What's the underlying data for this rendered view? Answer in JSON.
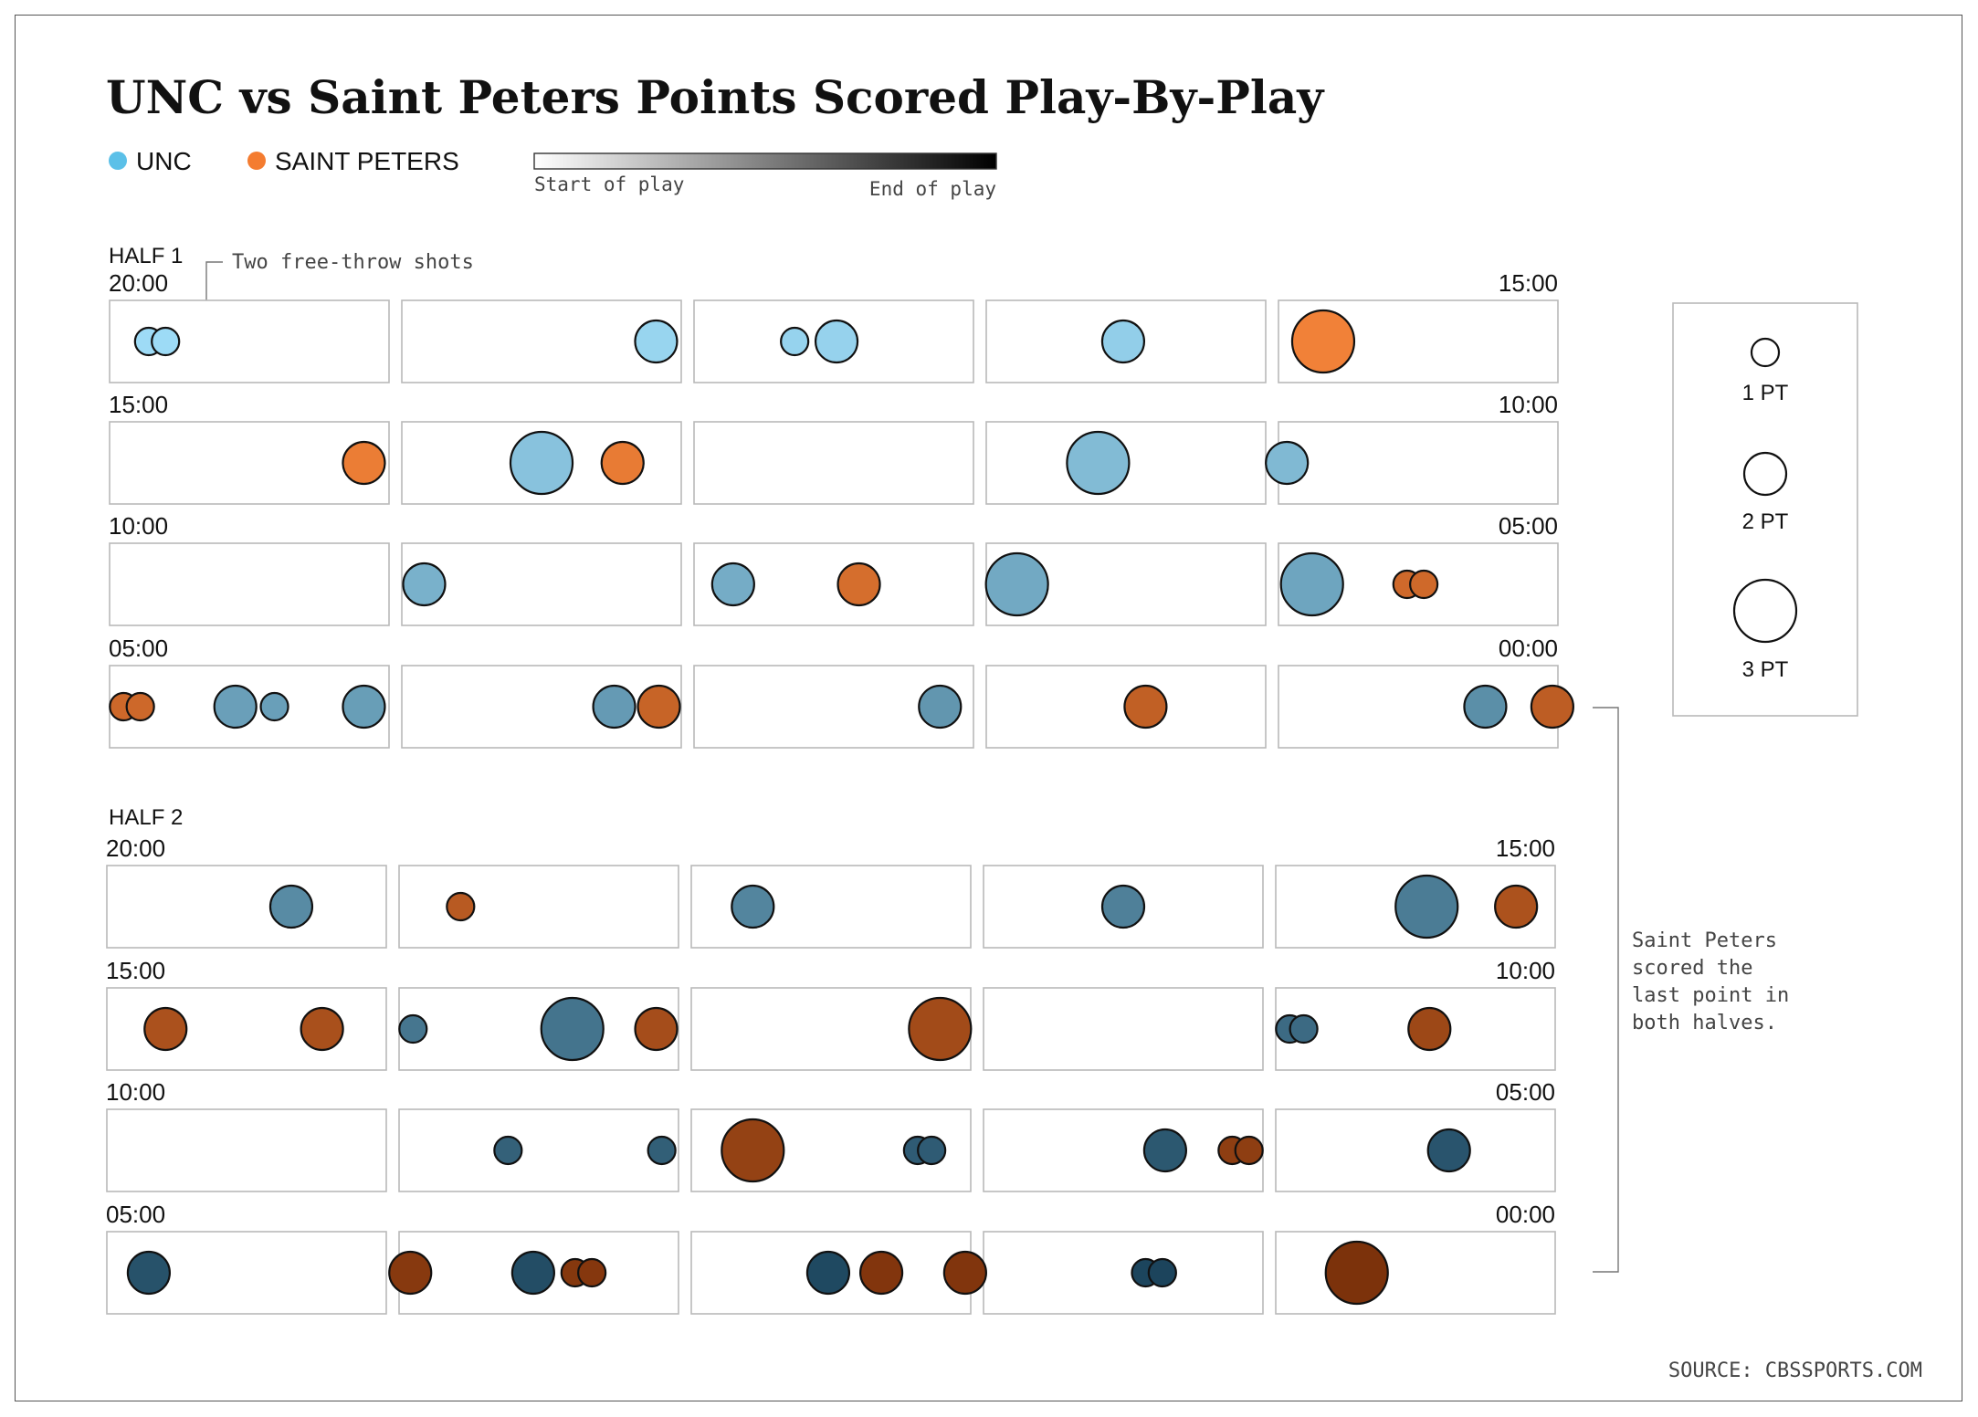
{
  "title": "UNC vs Saint Peters Points Scored Play-By-Play",
  "legend": {
    "teams": [
      {
        "name": "UNC",
        "color": "#5bc0e8"
      },
      {
        "name": "SAINT PETERS",
        "color": "#f47c30"
      }
    ],
    "gradient_start": "Start of play",
    "gradient_end": "End of play",
    "size_legend": [
      "1 PT",
      "2 PT",
      "3 PT"
    ]
  },
  "annotations": {
    "free_throw": "Two free-throw shots",
    "last_point": [
      "Saint Peters",
      "scored the",
      "last point in",
      "both halves."
    ]
  },
  "source": "SOURCE: CBSSPORTS.COM",
  "colors": {
    "unc_start": "#9edcf7",
    "unc_end": "#173f57",
    "sp_start": "#ff8a3d",
    "sp_end": "#7a300a"
  },
  "chart_data": {
    "type": "scatter",
    "encoding": "Each circle is one scoring play. Horizontal position = game clock within a 1-minute panel (5 panels per 5-minute row). Circle size = points (1, 2 or 3). Color = team; shade from light to dark = start to end of play.",
    "halves": [
      {
        "label": "HALF 1",
        "rows": [
          {
            "start_label": "20:00",
            "end_label": "15:00"
          },
          {
            "start_label": "15:00",
            "end_label": "10:00"
          },
          {
            "start_label": "10:00",
            "end_label": "05:00"
          },
          {
            "start_label": "05:00",
            "end_label": "00:00"
          }
        ],
        "plays": [
          {
            "row": 0,
            "panel": 0,
            "x": 0.14,
            "pts": 1,
            "team": "UNC"
          },
          {
            "row": 0,
            "panel": 0,
            "x": 0.2,
            "pts": 1,
            "team": "UNC"
          },
          {
            "row": 0,
            "panel": 1,
            "x": 0.91,
            "pts": 2,
            "team": "UNC"
          },
          {
            "row": 0,
            "panel": 2,
            "x": 0.36,
            "pts": 1,
            "team": "UNC"
          },
          {
            "row": 0,
            "panel": 2,
            "x": 0.51,
            "pts": 2,
            "team": "UNC"
          },
          {
            "row": 0,
            "panel": 3,
            "x": 0.49,
            "pts": 2,
            "team": "UNC"
          },
          {
            "row": 0,
            "panel": 4,
            "x": 0.16,
            "pts": 3,
            "team": "SP"
          },
          {
            "row": 1,
            "panel": 0,
            "x": 0.91,
            "pts": 2,
            "team": "SP"
          },
          {
            "row": 1,
            "panel": 1,
            "x": 0.5,
            "pts": 3,
            "team": "UNC"
          },
          {
            "row": 1,
            "panel": 1,
            "x": 0.79,
            "pts": 2,
            "team": "SP"
          },
          {
            "row": 1,
            "panel": 3,
            "x": 0.4,
            "pts": 3,
            "team": "UNC"
          },
          {
            "row": 1,
            "panel": 4,
            "x": 0.03,
            "pts": 2,
            "team": "UNC"
          },
          {
            "row": 2,
            "panel": 1,
            "x": 0.08,
            "pts": 2,
            "team": "UNC"
          },
          {
            "row": 2,
            "panel": 2,
            "x": 0.14,
            "pts": 2,
            "team": "UNC"
          },
          {
            "row": 2,
            "panel": 2,
            "x": 0.59,
            "pts": 2,
            "team": "SP"
          },
          {
            "row": 2,
            "panel": 3,
            "x": 0.11,
            "pts": 3,
            "team": "UNC"
          },
          {
            "row": 2,
            "panel": 4,
            "x": 0.12,
            "pts": 3,
            "team": "UNC"
          },
          {
            "row": 2,
            "panel": 4,
            "x": 0.46,
            "pts": 1,
            "team": "SP"
          },
          {
            "row": 2,
            "panel": 4,
            "x": 0.52,
            "pts": 1,
            "team": "SP"
          },
          {
            "row": 3,
            "panel": 0,
            "x": 0.05,
            "pts": 1,
            "team": "SP"
          },
          {
            "row": 3,
            "panel": 0,
            "x": 0.11,
            "pts": 1,
            "team": "SP"
          },
          {
            "row": 3,
            "panel": 0,
            "x": 0.45,
            "pts": 2,
            "team": "UNC"
          },
          {
            "row": 3,
            "panel": 0,
            "x": 0.59,
            "pts": 1,
            "team": "UNC"
          },
          {
            "row": 3,
            "panel": 0,
            "x": 0.91,
            "pts": 2,
            "team": "UNC"
          },
          {
            "row": 3,
            "panel": 1,
            "x": 0.76,
            "pts": 2,
            "team": "UNC"
          },
          {
            "row": 3,
            "panel": 1,
            "x": 0.92,
            "pts": 2,
            "team": "SP"
          },
          {
            "row": 3,
            "panel": 2,
            "x": 0.88,
            "pts": 2,
            "team": "UNC"
          },
          {
            "row": 3,
            "panel": 3,
            "x": 0.57,
            "pts": 2,
            "team": "SP"
          },
          {
            "row": 3,
            "panel": 4,
            "x": 0.74,
            "pts": 2,
            "team": "UNC"
          },
          {
            "row": 3,
            "panel": 4,
            "x": 0.98,
            "pts": 2,
            "team": "SP"
          }
        ]
      },
      {
        "label": "HALF 2",
        "rows": [
          {
            "start_label": "20:00",
            "end_label": "15:00"
          },
          {
            "start_label": "15:00",
            "end_label": "10:00"
          },
          {
            "start_label": "10:00",
            "end_label": "05:00"
          },
          {
            "start_label": "05:00",
            "end_label": "00:00"
          }
        ],
        "plays": [
          {
            "row": 0,
            "panel": 0,
            "x": 0.66,
            "pts": 2,
            "team": "UNC"
          },
          {
            "row": 0,
            "panel": 1,
            "x": 0.22,
            "pts": 1,
            "team": "SP"
          },
          {
            "row": 0,
            "panel": 2,
            "x": 0.22,
            "pts": 2,
            "team": "UNC"
          },
          {
            "row": 0,
            "panel": 3,
            "x": 0.5,
            "pts": 2,
            "team": "UNC"
          },
          {
            "row": 0,
            "panel": 4,
            "x": 0.54,
            "pts": 3,
            "team": "UNC"
          },
          {
            "row": 0,
            "panel": 4,
            "x": 0.86,
            "pts": 2,
            "team": "SP"
          },
          {
            "row": 1,
            "panel": 0,
            "x": 0.21,
            "pts": 2,
            "team": "SP"
          },
          {
            "row": 1,
            "panel": 0,
            "x": 0.77,
            "pts": 2,
            "team": "SP"
          },
          {
            "row": 1,
            "panel": 1,
            "x": 0.05,
            "pts": 1,
            "team": "UNC"
          },
          {
            "row": 1,
            "panel": 1,
            "x": 0.62,
            "pts": 3,
            "team": "UNC"
          },
          {
            "row": 1,
            "panel": 1,
            "x": 0.92,
            "pts": 2,
            "team": "SP"
          },
          {
            "row": 1,
            "panel": 2,
            "x": 0.89,
            "pts": 3,
            "team": "SP"
          },
          {
            "row": 1,
            "panel": 4,
            "x": 0.05,
            "pts": 1,
            "team": "UNC"
          },
          {
            "row": 1,
            "panel": 4,
            "x": 0.1,
            "pts": 1,
            "team": "UNC"
          },
          {
            "row": 1,
            "panel": 4,
            "x": 0.55,
            "pts": 2,
            "team": "SP"
          },
          {
            "row": 2,
            "panel": 1,
            "x": 0.39,
            "pts": 1,
            "team": "UNC"
          },
          {
            "row": 2,
            "panel": 1,
            "x": 0.94,
            "pts": 1,
            "team": "UNC"
          },
          {
            "row": 2,
            "panel": 2,
            "x": 0.22,
            "pts": 3,
            "team": "SP"
          },
          {
            "row": 2,
            "panel": 2,
            "x": 0.81,
            "pts": 1,
            "team": "UNC"
          },
          {
            "row": 2,
            "panel": 2,
            "x": 0.86,
            "pts": 1,
            "team": "UNC"
          },
          {
            "row": 2,
            "panel": 3,
            "x": 0.65,
            "pts": 2,
            "team": "UNC"
          },
          {
            "row": 2,
            "panel": 3,
            "x": 0.89,
            "pts": 1,
            "team": "SP"
          },
          {
            "row": 2,
            "panel": 3,
            "x": 0.95,
            "pts": 1,
            "team": "SP"
          },
          {
            "row": 2,
            "panel": 4,
            "x": 0.62,
            "pts": 2,
            "team": "UNC"
          },
          {
            "row": 3,
            "panel": 0,
            "x": 0.15,
            "pts": 2,
            "team": "UNC"
          },
          {
            "row": 3,
            "panel": 1,
            "x": 0.04,
            "pts": 2,
            "team": "SP"
          },
          {
            "row": 3,
            "panel": 1,
            "x": 0.48,
            "pts": 2,
            "team": "UNC"
          },
          {
            "row": 3,
            "panel": 1,
            "x": 0.63,
            "pts": 1,
            "team": "SP"
          },
          {
            "row": 3,
            "panel": 1,
            "x": 0.69,
            "pts": 1,
            "team": "SP"
          },
          {
            "row": 3,
            "panel": 2,
            "x": 0.49,
            "pts": 2,
            "team": "UNC"
          },
          {
            "row": 3,
            "panel": 2,
            "x": 0.68,
            "pts": 2,
            "team": "SP"
          },
          {
            "row": 3,
            "panel": 2,
            "x": 0.98,
            "pts": 2,
            "team": "SP"
          },
          {
            "row": 3,
            "panel": 3,
            "x": 0.58,
            "pts": 1,
            "team": "UNC"
          },
          {
            "row": 3,
            "panel": 3,
            "x": 0.64,
            "pts": 1,
            "team": "UNC"
          },
          {
            "row": 3,
            "panel": 4,
            "x": 0.29,
            "pts": 3,
            "team": "SP"
          }
        ]
      }
    ]
  }
}
